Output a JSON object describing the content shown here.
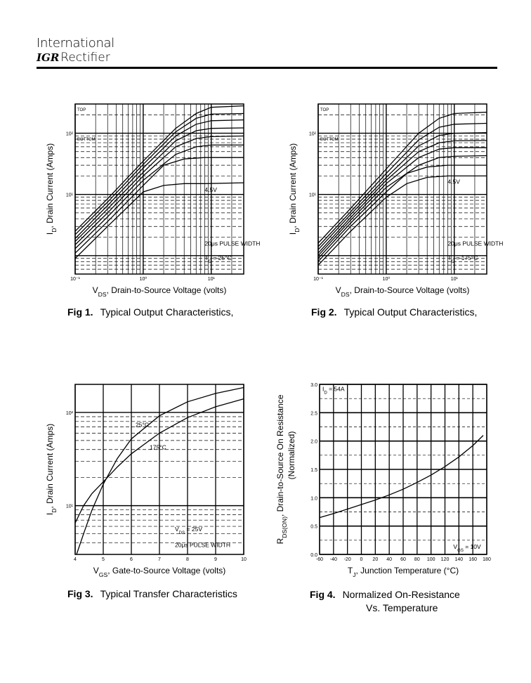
{
  "header": {
    "company_line1": "International",
    "logo": "IGR",
    "company_line2": "Rectifier"
  },
  "figures": [
    {
      "num": "Fig 1.",
      "caption": "Typical Output Characteristics,",
      "caption2": ""
    },
    {
      "num": "Fig 2.",
      "caption": "Typical Output Characteristics,",
      "caption2": ""
    },
    {
      "num": "Fig 3.",
      "caption": "Typical Transfer Characteristics",
      "caption2": ""
    },
    {
      "num": "Fig 4.",
      "caption": "Normalized On-Resistance",
      "caption2": "Vs. Temperature"
    }
  ],
  "chart_data": [
    {
      "type": "line",
      "log_x": true,
      "log_y": true,
      "xlabel": "V",
      "xlabel_sub": "DS",
      "xlabel_rest": ", Drain-to-Source Voltage (volts)",
      "ylabel": "I",
      "ylabel_sub": "D",
      "ylabel_rest": ", Drain Current (Amps)",
      "xlim": [
        0.1,
        30
      ],
      "ylim": [
        0.5,
        300
      ],
      "x_ticks": [
        {
          "v": 0.1,
          "t": "10⁻¹"
        },
        {
          "v": 1,
          "t": "10⁰"
        },
        {
          "v": 10,
          "t": "10¹"
        }
      ],
      "y_ticks": [
        {
          "v": 10,
          "t": "10¹"
        },
        {
          "v": 100,
          "t": "10²"
        }
      ],
      "legend_top": "TOP",
      "legend_bottom": "BOTTOM",
      "annotations": [
        {
          "t": "4.5V",
          "x": 8,
          "y": 11
        },
        {
          "t": "20μs PULSE WIDTH",
          "x": 8,
          "y": 1.45
        },
        {
          "t": "T  = 25°C",
          "sub": "C",
          "x": 8,
          "y": 0.85
        }
      ],
      "grid": true,
      "series": [
        {
          "x": [
            0.1,
            0.3,
            1,
            2,
            4,
            8,
            30
          ],
          "values": [
            0.9,
            3,
            11,
            14,
            15,
            15,
            15.5
          ]
        },
        {
          "x": [
            0.1,
            0.3,
            1,
            2,
            4,
            8,
            30
          ],
          "values": [
            1.1,
            3.6,
            14,
            30,
            38,
            40,
            40
          ]
        },
        {
          "x": [
            0.1,
            0.3,
            1,
            3,
            6,
            10,
            30
          ],
          "values": [
            1.3,
            4.3,
            17,
            45,
            60,
            64,
            64
          ]
        },
        {
          "x": [
            0.1,
            0.3,
            1,
            3,
            6,
            10,
            30
          ],
          "values": [
            1.5,
            5,
            20,
            60,
            82,
            88,
            90
          ]
        },
        {
          "x": [
            0.1,
            0.3,
            1,
            3,
            6,
            10,
            30
          ],
          "values": [
            1.7,
            5.8,
            23,
            75,
            110,
            120,
            122
          ]
        },
        {
          "x": [
            0.1,
            0.3,
            1,
            3,
            6,
            10,
            30
          ],
          "values": [
            1.9,
            6.6,
            27,
            90,
            140,
            160,
            165
          ]
        },
        {
          "x": [
            0.1,
            0.3,
            1,
            3,
            6,
            10,
            30
          ],
          "values": [
            2.2,
            7.5,
            31,
            105,
            175,
            205,
            210
          ]
        },
        {
          "x": [
            0.1,
            0.3,
            1,
            3,
            6,
            10,
            30
          ],
          "values": [
            2.5,
            8.5,
            35,
            120,
            210,
            265,
            280
          ]
        }
      ]
    },
    {
      "type": "line",
      "log_x": true,
      "log_y": true,
      "xlabel": "V",
      "xlabel_sub": "DS",
      "xlabel_rest": ", Drain-to-Source Voltage (volts)",
      "ylabel": "I",
      "ylabel_sub": "D",
      "ylabel_rest": ", Drain Current (Amps)",
      "xlim": [
        0.1,
        30
      ],
      "ylim": [
        0.5,
        300
      ],
      "x_ticks": [
        {
          "v": 0.1,
          "t": "10⁻¹"
        },
        {
          "v": 1,
          "t": "10⁰"
        },
        {
          "v": 10,
          "t": "10¹"
        }
      ],
      "y_ticks": [
        {
          "v": 10,
          "t": "10¹"
        },
        {
          "v": 100,
          "t": "10²"
        }
      ],
      "legend_top": "TOP",
      "legend_bottom": "BOTTOM",
      "annotations": [
        {
          "t": "4.5V",
          "x": 8,
          "y": 15
        },
        {
          "t": "20μs PULSE WIDTH",
          "x": 8,
          "y": 1.45
        },
        {
          "t": "T  = 175°C",
          "sub": "C",
          "x": 8,
          "y": 0.85
        }
      ],
      "grid": true,
      "series": [
        {
          "x": [
            0.1,
            0.3,
            1,
            2,
            4,
            8,
            30
          ],
          "values": [
            0.7,
            2.5,
            9,
            15,
            19,
            20,
            20
          ]
        },
        {
          "x": [
            0.1,
            0.3,
            1,
            2,
            4,
            8,
            30
          ],
          "values": [
            0.8,
            3,
            11,
            22,
            28,
            30,
            30
          ]
        },
        {
          "x": [
            0.1,
            0.3,
            1,
            3,
            6,
            10,
            30
          ],
          "values": [
            0.9,
            3.4,
            13,
            30,
            40,
            42,
            43
          ]
        },
        {
          "x": [
            0.1,
            0.3,
            1,
            3,
            6,
            10,
            30
          ],
          "values": [
            1.0,
            3.8,
            15,
            40,
            55,
            58,
            58
          ]
        },
        {
          "x": [
            0.1,
            0.3,
            1,
            3,
            6,
            10,
            30
          ],
          "values": [
            1.1,
            4.2,
            17,
            50,
            70,
            75,
            76
          ]
        },
        {
          "x": [
            0.1,
            0.3,
            1,
            3,
            6,
            10,
            30
          ],
          "values": [
            1.25,
            4.7,
            19,
            62,
            92,
            100,
            102
          ]
        },
        {
          "x": [
            0.1,
            0.3,
            1,
            3,
            6,
            10,
            30
          ],
          "values": [
            1.4,
            5.2,
            22,
            78,
            125,
            140,
            145
          ]
        },
        {
          "x": [
            0.1,
            0.3,
            1,
            3,
            6,
            10,
            30
          ],
          "values": [
            1.6,
            5.9,
            26,
            100,
            175,
            210,
            220
          ]
        }
      ]
    },
    {
      "type": "line",
      "log_x": false,
      "log_y": true,
      "xlabel": "V",
      "xlabel_sub": "GS",
      "xlabel_rest": ", Gate-to-Source Voltage (volts)",
      "ylabel": "I",
      "ylabel_sub": "D",
      "ylabel_rest": ", Drain Current (Amps)",
      "xlim": [
        4,
        10
      ],
      "ylim": [
        3,
        200
      ],
      "x_ticks": [
        {
          "v": 4,
          "t": "4"
        },
        {
          "v": 5,
          "t": "5"
        },
        {
          "v": 6,
          "t": "6"
        },
        {
          "v": 7,
          "t": "7"
        },
        {
          "v": 8,
          "t": "8"
        },
        {
          "v": 9,
          "t": "9"
        },
        {
          "v": 10,
          "t": "10"
        }
      ],
      "y_ticks": [
        {
          "v": 10,
          "t": "10¹"
        },
        {
          "v": 100,
          "t": "10²"
        }
      ],
      "annotations": [
        {
          "t": "25°C",
          "x": 6.15,
          "y": 70
        },
        {
          "t": "175°C",
          "x": 6.65,
          "y": 40
        },
        {
          "t": "V   = 25V",
          "sub": "DS",
          "x": 7.55,
          "y": 5.3
        },
        {
          "t": "20μs PULSE WIDTH",
          "x": 7.55,
          "y": 3.6
        }
      ],
      "grid": true,
      "series": [
        {
          "name": "25°C",
          "x": [
            4.05,
            4.3,
            4.6,
            5,
            5.5,
            6,
            7,
            8,
            9,
            10
          ],
          "values": [
            3,
            5,
            9,
            17,
            32,
            52,
            92,
            130,
            160,
            185
          ]
        },
        {
          "name": "175°C",
          "x": [
            4,
            4.3,
            4.6,
            5,
            5.5,
            6,
            7,
            8,
            9,
            10
          ],
          "values": [
            6.5,
            10,
            13.5,
            18,
            26,
            36,
            60,
            88,
            115,
            140
          ]
        }
      ]
    },
    {
      "type": "line",
      "log_x": false,
      "log_y": false,
      "xlabel": "T",
      "xlabel_sub": "J",
      "xlabel_rest": ", Junction Temperature (°C)",
      "ylabel": "R",
      "ylabel_sub": "DS(ON)",
      "ylabel_rest": ", Drain-to-Source On Resistance",
      "ylabel2": "(Normalized)",
      "xlim": [
        -60,
        180
      ],
      "ylim": [
        0,
        3
      ],
      "x_ticks": [
        {
          "v": -60,
          "t": "-60"
        },
        {
          "v": -40,
          "t": "-40"
        },
        {
          "v": -20,
          "t": "-20"
        },
        {
          "v": 0,
          "t": "0"
        },
        {
          "v": 20,
          "t": "20"
        },
        {
          "v": 40,
          "t": "40"
        },
        {
          "v": 60,
          "t": "60"
        },
        {
          "v": 80,
          "t": "80"
        },
        {
          "v": 100,
          "t": "100"
        },
        {
          "v": 120,
          "t": "120"
        },
        {
          "v": 140,
          "t": "140"
        },
        {
          "v": 160,
          "t": "160"
        },
        {
          "v": 180,
          "t": "180"
        }
      ],
      "y_ticks": [
        {
          "v": 0,
          "t": "0.0"
        },
        {
          "v": 0.5,
          "t": "0.5"
        },
        {
          "v": 1,
          "t": "1.0"
        },
        {
          "v": 1.5,
          "t": "1.5"
        },
        {
          "v": 2,
          "t": "2.0"
        },
        {
          "v": 2.5,
          "t": "2.5"
        },
        {
          "v": 3,
          "t": "3.0"
        }
      ],
      "annotations": [
        {
          "t": "I  = 54A",
          "sub": "D",
          "x": -56,
          "y": 2.88
        },
        {
          "t": "V   = 10V",
          "sub": "GS",
          "x": 132,
          "y": 0.1
        }
      ],
      "grid": true,
      "series": [
        {
          "x": [
            -60,
            -40,
            -20,
            0,
            20,
            40,
            60,
            80,
            100,
            120,
            140,
            160,
            175
          ],
          "values": [
            0.65,
            0.72,
            0.8,
            0.88,
            0.96,
            1.05,
            1.15,
            1.27,
            1.4,
            1.55,
            1.72,
            1.92,
            2.1
          ]
        }
      ]
    }
  ]
}
